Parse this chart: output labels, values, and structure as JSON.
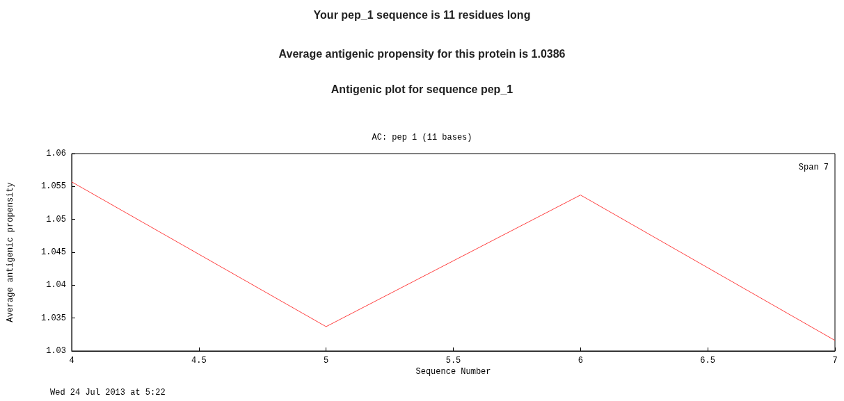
{
  "chart_data": {
    "type": "line",
    "title": "Your pep_1 sequence is 11 residues long",
    "subtitle": "Average antigenic propensity for this protein is 1.0386",
    "annotations": [
      "Antigenic plot for sequence pep_1",
      "AC: pep 1 (11 bases)",
      "Span 7",
      "Wed 24 Jul 2013 at 5:22"
    ],
    "xlabel": "Sequence Number",
    "ylabel": "Average antigenic propensity",
    "x": [
      4,
      5,
      6,
      7
    ],
    "series": [
      {
        "color": "#ff4040",
        "values": [
          1.0557,
          1.0337,
          1.0537,
          1.0316
        ]
      }
    ],
    "xlim": [
      4,
      7
    ],
    "xticks": [
      4,
      4.5,
      5,
      5.5,
      6,
      6.5,
      7
    ],
    "ylim": [
      1.03,
      1.06
    ],
    "yticks": [
      1.03,
      1.035,
      1.04,
      1.045,
      1.05,
      1.055,
      1.06
    ],
    "marker": "none",
    "line_style": "solid"
  }
}
